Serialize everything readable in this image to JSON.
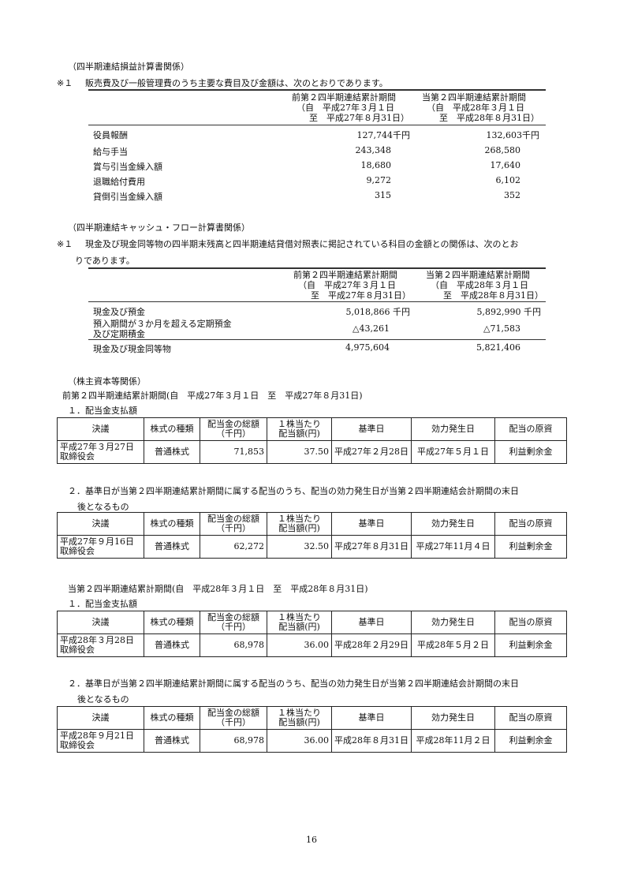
{
  "pl": {
    "heading": "（四半期連結損益計算書関係）",
    "note_mark": "※１",
    "note": "販売費及び一般管理費のうち主要な費目及び金額は、次のとおりであります。",
    "col_prev": [
      "前第２四半期連結累計期間",
      "（自　平成27年３月１日",
      "至　平成27年８月31日）"
    ],
    "col_curr": [
      "当第２四半期連結累計期間",
      "（自　平成28年３月１日",
      "至　平成28年８月31日）"
    ],
    "rows": [
      {
        "label": "役員報酬",
        "prev": "127,744千円",
        "curr": "132,603千円"
      },
      {
        "label": "給与手当",
        "prev": "243,348",
        "curr": "268,580"
      },
      {
        "label": "賞与引当金繰入額",
        "prev": "18,680",
        "curr": "17,640"
      },
      {
        "label": "退職給付費用",
        "prev": "9,272",
        "curr": "6,102"
      },
      {
        "label": "貸倒引当金繰入額",
        "prev": "315",
        "curr": "352"
      }
    ]
  },
  "cf": {
    "heading": "（四半期連結キャッシュ・フロー計算書関係）",
    "note_mark": "※１",
    "note_line1": "現金及び現金同等物の四半期末残高と四半期連結貸借対照表に掲記されている科目の金額との関係は、次のとお",
    "note_line2": "りであります。",
    "col_prev": [
      "前第２四半期連結累計期間",
      "（自　平成27年３月１日",
      "至　平成27年８月31日）"
    ],
    "col_curr": [
      "当第２四半期連結累計期間",
      "（自　平成28年３月１日",
      "至　平成28年８月31日）"
    ],
    "rows": [
      {
        "label": "現金及び預金",
        "prev": "5,018,866 千円",
        "curr": "5,892,990 千円"
      },
      {
        "label": "預入期間が３か月を超える定期預金",
        "label2": "及び定期積金",
        "prev": "△43,261",
        "curr": "△71,583"
      },
      {
        "label": "現金及び現金同等物",
        "prev": "4,975,604",
        "curr": "5,821,406"
      }
    ]
  },
  "eq": {
    "heading": "（株主資本等関係）",
    "prev_period": "前第２四半期連結累計期間(自　平成27年３月１日　至　平成27年８月31日)",
    "curr_period": "当第２四半期連結累計期間(自　平成28年３月１日　至　平成28年８月31日)",
    "sub1": "１．配当金支払額",
    "sub2_line1": "２．基準日が当第２四半期連結累計期間に属する配当のうち、配当の効力発生日が当第２四半期連結会計期間の末日",
    "sub2_line2": "後となるもの",
    "headers": [
      "決議",
      "株式の種類",
      "配当金の総額",
      "（千円）",
      "１株当たり",
      "配当額(円)",
      "基準日",
      "効力発生日",
      "配当の原資"
    ],
    "tables": [
      {
        "res1": "平成27年３月27日",
        "res2": "取締役会",
        "type": "普通株式",
        "total": "71,853",
        "per": "37.50",
        "record": "平成27年２月28日",
        "effective": "平成27年５月１日",
        "source": "利益剰余金"
      },
      {
        "res1": "平成27年９月16日",
        "res2": "取締役会",
        "type": "普通株式",
        "total": "62,272",
        "per": "32.50",
        "record": "平成27年８月31日",
        "effective": "平成27年11月４日",
        "source": "利益剰余金"
      },
      {
        "res1": "平成28年３月28日",
        "res2": "取締役会",
        "type": "普通株式",
        "total": "68,978",
        "per": "36.00",
        "record": "平成28年２月29日",
        "effective": "平成28年５月２日",
        "source": "利益剰余金"
      },
      {
        "res1": "平成28年９月21日",
        "res2": "取締役会",
        "type": "普通株式",
        "total": "68,978",
        "per": "36.00",
        "record": "平成28年８月31日",
        "effective": "平成28年11月２日",
        "source": "利益剰余金"
      }
    ]
  },
  "page_number": "16"
}
